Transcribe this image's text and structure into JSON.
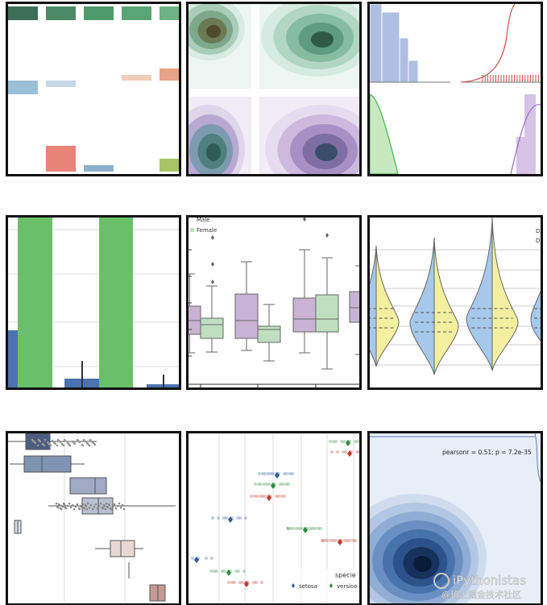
{
  "panels": {
    "box_legend": [
      "Male",
      "Female"
    ],
    "violin_legend": [
      "D",
      "D"
    ],
    "strip_legend": {
      "title": "specie",
      "items": [
        "setosa",
        "versico"
      ]
    },
    "joint_annotation": "pearsonr = 0.51; p = 7.2e-35"
  },
  "watermark": {
    "brand": "iPythonistas",
    "source": "@稀土掘金技术社区"
  }
}
